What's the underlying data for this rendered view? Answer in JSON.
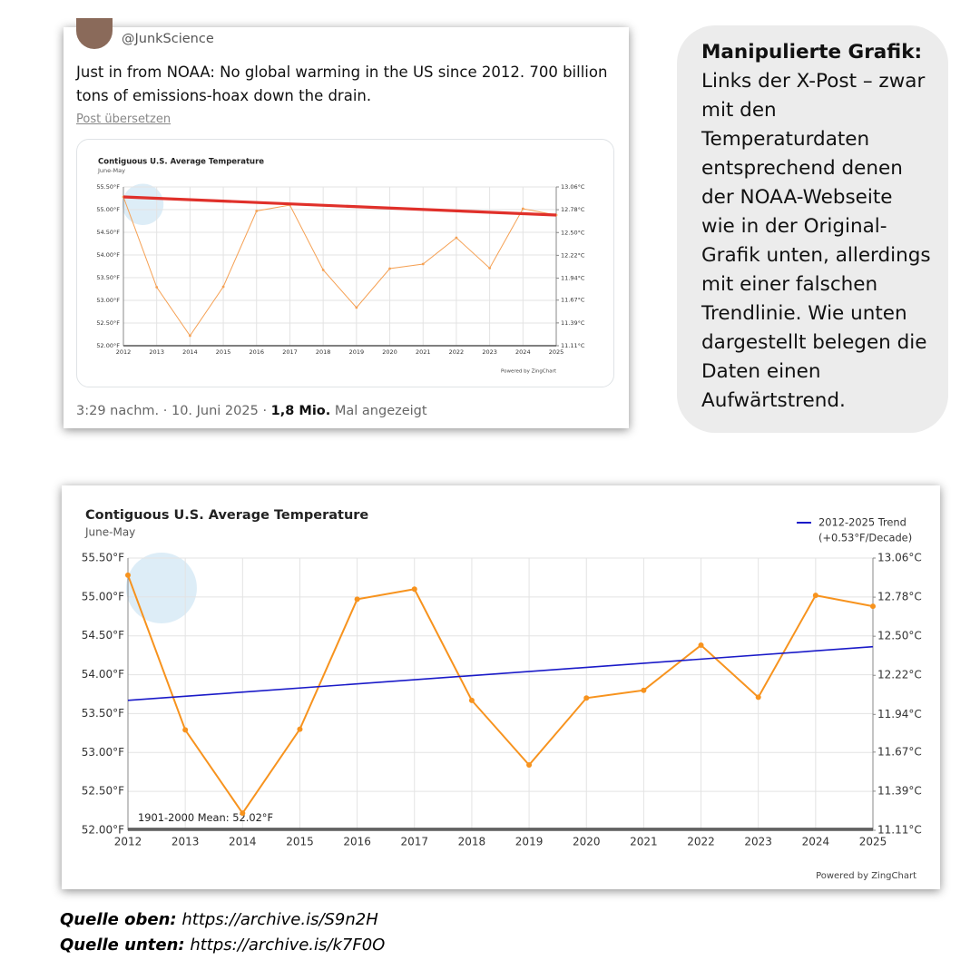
{
  "tweet": {
    "handle": "@JunkScience",
    "text_lines": [
      "Just in from NOAA: No global warming in the US since 2012. 700 billion",
      "tons of emissions-hoax down the drain."
    ],
    "translate": "Post übersetzen",
    "time": "3:29 nachm. · 10. Juni 2025 ·",
    "views": "1,8 Mio.",
    "views_suffix": "Mal angezeigt"
  },
  "info": {
    "heading": "Manipulierte Grafik:",
    "body_lines": [
      "Links der X-Post – zwar",
      "mit den",
      "Temperaturdaten",
      "entsprechend denen",
      "der NOAA-Webseite",
      "wie in der Original-",
      "Grafik unten, allerdings",
      "mit einer falschen",
      "Trendlinie. Wie unten",
      "dargestellt belegen die",
      "Daten einen",
      "Aufwärtstrend."
    ]
  },
  "sources": [
    {
      "label": "Quelle oben:",
      "url": "https://archive.is/S9n2H"
    },
    {
      "label": "Quelle unten:",
      "url": "https://archive.is/k7F0O"
    }
  ],
  "chart_data": [
    {
      "type": "line",
      "title": "Contiguous U.S. Average Temperature",
      "subtitle": "June-May",
      "credit": "Powered by ZingChart",
      "x": [
        2012,
        2013,
        2014,
        2015,
        2016,
        2017,
        2018,
        2019,
        2020,
        2021,
        2022,
        2023,
        2024,
        2025
      ],
      "xlim": [
        2012,
        2025
      ],
      "xticks": [
        2012,
        2013,
        2014,
        2015,
        2016,
        2017,
        2018,
        2019,
        2020,
        2021,
        2022,
        2023,
        2024,
        2025
      ],
      "ylim": [
        52,
        55.5
      ],
      "yticks": [
        {
          "value": 52,
          "label": "52.00°F"
        },
        {
          "value": 52.5,
          "label": "52.50°F"
        },
        {
          "value": 53,
          "label": "53.00°F"
        },
        {
          "value": 53.5,
          "label": "53.50°F"
        },
        {
          "value": 54,
          "label": "54.00°F"
        },
        {
          "value": 54.5,
          "label": "54.50°F"
        },
        {
          "value": 55,
          "label": "55.00°F"
        },
        {
          "value": 55.5,
          "label": "55.50°F"
        }
      ],
      "y2lim": [
        11.11,
        13.06
      ],
      "y2ticks": [
        {
          "value": 11.11,
          "label": "11.11°C"
        },
        {
          "value": 11.39,
          "label": "11.39°C"
        },
        {
          "value": 11.67,
          "label": "11.67°C"
        },
        {
          "value": 11.94,
          "label": "11.94°C"
        },
        {
          "value": 12.22,
          "label": "12.22°C"
        },
        {
          "value": 12.5,
          "label": "12.50°C"
        },
        {
          "value": 12.78,
          "label": "12.78°C"
        },
        {
          "value": 13.06,
          "label": "13.06°C"
        }
      ],
      "grid": true,
      "series": [
        {
          "color": "#f5a053",
          "values": [
            55.28,
            53.29,
            52.22,
            53.3,
            54.97,
            55.1,
            53.67,
            52.84,
            53.7,
            53.8,
            54.38,
            53.71,
            55.02,
            54.88
          ]
        },
        {
          "color": "#e0302a",
          "x": [
            2012,
            2025
          ],
          "values": [
            55.28,
            54.88
          ]
        }
      ]
    },
    {
      "type": "line",
      "title": "Contiguous U.S. Average Temperature",
      "subtitle": "June-May",
      "credit": "Powered by ZingChart",
      "x": [
        2012,
        2013,
        2014,
        2015,
        2016,
        2017,
        2018,
        2019,
        2020,
        2021,
        2022,
        2023,
        2024,
        2025
      ],
      "xlim": [
        2012,
        2025
      ],
      "xticks": [
        2012,
        2013,
        2014,
        2015,
        2016,
        2017,
        2018,
        2019,
        2020,
        2021,
        2022,
        2023,
        2024,
        2025
      ],
      "ylim": [
        52,
        55.5
      ],
      "yticks": [
        {
          "value": 52,
          "label": "52.00°F"
        },
        {
          "value": 52.5,
          "label": "52.50°F"
        },
        {
          "value": 53,
          "label": "53.00°F"
        },
        {
          "value": 53.5,
          "label": "53.50°F"
        },
        {
          "value": 54,
          "label": "54.00°F"
        },
        {
          "value": 54.5,
          "label": "54.50°F"
        },
        {
          "value": 55,
          "label": "55.00°F"
        },
        {
          "value": 55.5,
          "label": "55.50°F"
        }
      ],
      "y2lim": [
        11.11,
        13.06
      ],
      "y2ticks": [
        {
          "value": 11.11,
          "label": "11.11°C"
        },
        {
          "value": 11.39,
          "label": "11.39°C"
        },
        {
          "value": 11.67,
          "label": "11.67°C"
        },
        {
          "value": 11.94,
          "label": "11.94°C"
        },
        {
          "value": 12.22,
          "label": "12.22°C"
        },
        {
          "value": 12.5,
          "label": "12.50°C"
        },
        {
          "value": 12.78,
          "label": "12.78°C"
        },
        {
          "value": 13.06,
          "label": "13.06°C"
        }
      ],
      "grid": true,
      "legend": "top-right",
      "legend_note": "(+0.53°F/Decade)",
      "mean": {
        "label": "1901-2000 Mean: 52.02°F",
        "value": 52.02
      },
      "series": [
        {
          "color": "#f7931e",
          "values": [
            55.28,
            53.29,
            52.22,
            53.3,
            54.97,
            55.1,
            53.67,
            52.84,
            53.7,
            53.8,
            54.38,
            53.71,
            55.02,
            54.88
          ]
        },
        {
          "name": "2012-2025 Trend",
          "color": "#1a1ac8",
          "x": [
            2012,
            2025
          ],
          "values": [
            53.67,
            54.36
          ]
        }
      ]
    }
  ]
}
